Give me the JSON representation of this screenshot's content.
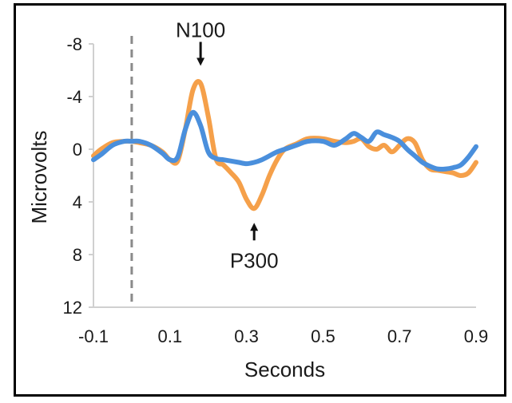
{
  "chart_data": {
    "type": "line",
    "xlabel": "Seconds",
    "ylabel": "Microvolts",
    "xlim": [
      -0.1,
      0.9
    ],
    "ylim": [
      -8,
      12
    ],
    "y_inverted": true,
    "x_ticks": [
      "-0.1",
      "0.1",
      "0.3",
      "0.5",
      "0.7",
      "0.9"
    ],
    "x_tick_values": [
      -0.1,
      0.1,
      0.3,
      0.5,
      0.7,
      0.9
    ],
    "y_ticks": [
      "-8",
      "-4",
      "0",
      "4",
      "8",
      "12"
    ],
    "y_tick_values": [
      -8,
      -4,
      0,
      4,
      8,
      12
    ],
    "grid": false,
    "stimulus_marker_x": 0,
    "series": [
      {
        "color": "#f5a04a",
        "x": [
          -0.1,
          -0.08,
          -0.05,
          -0.02,
          0,
          0.02,
          0.05,
          0.08,
          0.1,
          0.12,
          0.14,
          0.16,
          0.18,
          0.2,
          0.22,
          0.24,
          0.26,
          0.28,
          0.3,
          0.32,
          0.34,
          0.36,
          0.38,
          0.4,
          0.43,
          0.46,
          0.5,
          0.53,
          0.56,
          0.58,
          0.6,
          0.62,
          0.64,
          0.66,
          0.68,
          0.7,
          0.72,
          0.74,
          0.76,
          0.78,
          0.8,
          0.82,
          0.84,
          0.86,
          0.88,
          0.9
        ],
        "y": [
          0.5,
          0,
          -0.5,
          -0.6,
          -0.6,
          -0.5,
          -0.3,
          0.2,
          0.8,
          0.9,
          -1.5,
          -4.5,
          -5,
          -2.5,
          0.7,
          1.2,
          1.8,
          2.5,
          3.8,
          4.5,
          3.5,
          2,
          0.8,
          0,
          -0.4,
          -0.8,
          -0.8,
          -0.6,
          -0.5,
          -0.6,
          -0.8,
          -0.2,
          0,
          -0.3,
          0.2,
          -0.3,
          -0.8,
          -0.5,
          0.8,
          1.5,
          1.6,
          1.7,
          1.8,
          2,
          1.8,
          1
        ]
      },
      {
        "color": "#4a8fdc",
        "x": [
          -0.1,
          -0.08,
          -0.05,
          -0.02,
          0,
          0.02,
          0.05,
          0.08,
          0.1,
          0.12,
          0.14,
          0.16,
          0.18,
          0.2,
          0.22,
          0.24,
          0.26,
          0.28,
          0.3,
          0.32,
          0.34,
          0.36,
          0.38,
          0.4,
          0.43,
          0.46,
          0.5,
          0.53,
          0.56,
          0.58,
          0.6,
          0.62,
          0.64,
          0.66,
          0.68,
          0.7,
          0.72,
          0.74,
          0.76,
          0.78,
          0.8,
          0.82,
          0.84,
          0.86,
          0.88,
          0.9
        ],
        "y": [
          0.8,
          0.4,
          -0.3,
          -0.6,
          -0.6,
          -0.6,
          -0.3,
          0.3,
          0.8,
          0.6,
          -1.5,
          -2.8,
          -1.8,
          0.2,
          0.7,
          0.8,
          0.9,
          1,
          1.1,
          1,
          0.8,
          0.5,
          0.2,
          0,
          -0.3,
          -0.6,
          -0.6,
          -0.3,
          -0.8,
          -1.2,
          -0.9,
          -0.6,
          -1.3,
          -1.1,
          -0.9,
          -0.6,
          0,
          0.5,
          1,
          1.3,
          1.5,
          1.5,
          1.4,
          1.2,
          0.6,
          -0.2
        ]
      }
    ],
    "annotations": [
      {
        "label": "N100",
        "x": 0.18,
        "y": -5
      },
      {
        "label": "P300",
        "x": 0.32,
        "y": 4.5
      }
    ]
  }
}
